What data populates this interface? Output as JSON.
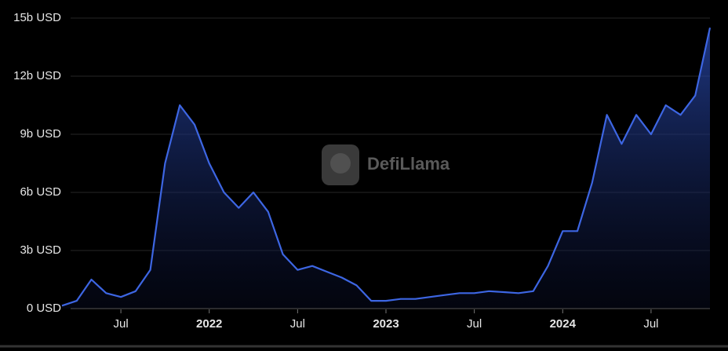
{
  "chart_data": {
    "type": "area",
    "watermark": "DefiLlama",
    "color": "#3d66e3",
    "x": [
      "2021-03",
      "2021-04",
      "2021-05",
      "2021-06",
      "2021-07",
      "2021-08",
      "2021-09",
      "2021-10",
      "2021-11",
      "2021-12",
      "2022-01",
      "2022-02",
      "2022-03",
      "2022-04",
      "2022-05",
      "2022-06",
      "2022-07",
      "2022-08",
      "2022-09",
      "2022-10",
      "2022-11",
      "2022-12",
      "2023-01",
      "2023-02",
      "2023-03",
      "2023-04",
      "2023-05",
      "2023-06",
      "2023-07",
      "2023-08",
      "2023-09",
      "2023-10",
      "2023-11",
      "2023-12",
      "2024-01",
      "2024-02",
      "2024-03",
      "2024-04",
      "2024-05",
      "2024-06",
      "2024-07",
      "2024-08",
      "2024-09",
      "2024-10",
      "2024-11"
    ],
    "values": [
      0.15,
      0.4,
      1.5,
      0.8,
      0.6,
      0.9,
      2.0,
      7.5,
      10.5,
      9.5,
      7.5,
      6.0,
      5.2,
      6.0,
      5.0,
      2.8,
      2.0,
      2.2,
      1.9,
      1.6,
      1.2,
      0.4,
      0.4,
      0.5,
      0.5,
      0.6,
      0.7,
      0.8,
      0.8,
      0.9,
      0.85,
      0.8,
      0.9,
      2.2,
      4.0,
      4.0,
      6.5,
      10.0,
      8.5,
      10.0,
      9.0,
      10.5,
      10.0,
      11.0,
      14.5
    ],
    "xlim": [
      "2021-03",
      "2024-11"
    ],
    "xticks": [
      {
        "value": "2021-07",
        "label": "Jul"
      },
      {
        "value": "2022-01",
        "label": "2022"
      },
      {
        "value": "2022-07",
        "label": "Jul"
      },
      {
        "value": "2023-01",
        "label": "2023"
      },
      {
        "value": "2023-07",
        "label": "Jul"
      },
      {
        "value": "2024-01",
        "label": "2024"
      },
      {
        "value": "2024-07",
        "label": "Jul"
      }
    ],
    "ylim": [
      0,
      15
    ],
    "yticks": [
      {
        "value": 0,
        "label": "0 USD"
      },
      {
        "value": 3,
        "label": "3b USD"
      },
      {
        "value": 6,
        "label": "6b USD"
      },
      {
        "value": 9,
        "label": "9b USD"
      },
      {
        "value": 12,
        "label": "12b USD"
      },
      {
        "value": 15,
        "label": "15b USD"
      }
    ],
    "grid": true
  }
}
